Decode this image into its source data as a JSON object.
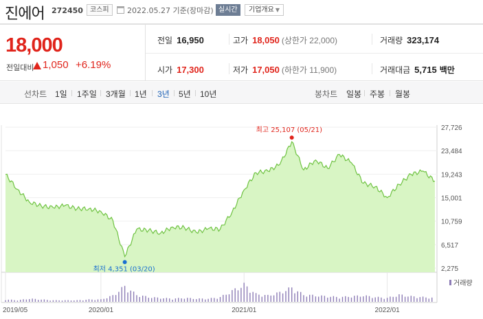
{
  "header": {
    "stock_name": "진에어",
    "stock_code": "272450",
    "market": "코스피",
    "date_text": "2022.05.27 기준(장마감)",
    "realtime_label": "실시간",
    "overview_label": "기업개요",
    "icons": {
      "calendar": "calendar-icon",
      "dropdown": "chevron-down-icon"
    }
  },
  "price": {
    "current": "18,000",
    "change_label": "전일대비",
    "change_value": "1,050",
    "change_pct": "+6.19%",
    "direction": "up",
    "colors": {
      "up": "#e0241b"
    }
  },
  "stats": {
    "prev_close_label": "전일",
    "prev_close": "16,950",
    "high_label": "고가",
    "high": "18,050",
    "upper_limit_text": "(상한가 22,000)",
    "volume_label": "거래량",
    "volume": "323,174",
    "open_label": "시가",
    "open": "17,300",
    "low_label": "저가",
    "low": "17,050",
    "lower_limit_text": "(하한가 11,900)",
    "amount_label": "거래대금",
    "amount": "5,715",
    "amount_unit": "백만"
  },
  "toolbar": {
    "line_chart_label": "선차트",
    "periods": [
      "1일",
      "1주일",
      "3개월",
      "1년",
      "3년",
      "5년",
      "10년"
    ],
    "active_period": "3년",
    "candle_chart_label": "봉차트",
    "candle_periods": [
      "일봉",
      "주봉",
      "월봉"
    ]
  },
  "chart_data": {
    "type": "area",
    "y_ticks": [
      "27,726",
      "23,484",
      "19,243",
      "15,001",
      "10,759",
      "6,517",
      "2,275"
    ],
    "ylim": [
      2275,
      27726
    ],
    "x_ticks": [
      "2019/05",
      "2020/01",
      "2021/01",
      "2022/01"
    ],
    "max_annotation": "최고 25,107 (05/21)",
    "min_annotation": "최저 4,351 (03/20)",
    "volume_label": "거래량",
    "colors": {
      "area_fill": "#d8f5c4",
      "line": "#6ec241",
      "max_marker": "#e0241b",
      "min_marker": "#1a6fd0",
      "volume_bar": "#8c7bb5"
    },
    "x": [
      "2019-05",
      "2019-06",
      "2019-07",
      "2019-08",
      "2019-09",
      "2019-10",
      "2019-11",
      "2019-12",
      "2020-01",
      "2020-02",
      "2020-03",
      "2020-04",
      "2020-05",
      "2020-06",
      "2020-07",
      "2020-08",
      "2020-09",
      "2020-10",
      "2020-11",
      "2020-12",
      "2021-01",
      "2021-02",
      "2021-03",
      "2021-04",
      "2021-05",
      "2021-06",
      "2021-07",
      "2021-08",
      "2021-09",
      "2021-10",
      "2021-11",
      "2021-12",
      "2022-01",
      "2022-02",
      "2022-03",
      "2022-04",
      "2022-05"
    ],
    "series": [
      {
        "values": [
          19200,
          16500,
          14200,
          13500,
          13200,
          13600,
          13000,
          13000,
          12500,
          10900,
          4351,
          9300,
          9100,
          8600,
          9700,
          9600,
          8700,
          9400,
          9300,
          12400,
          16400,
          19500,
          19800,
          21000,
          25107,
          20000,
          21800,
          20300,
          22800,
          21300,
          17600,
          17000,
          15000,
          17400,
          19200,
          19800,
          18000
        ]
      }
    ],
    "volume": [
      3,
      2,
      4,
      3,
      2,
      2,
      2,
      3,
      3,
      8,
      20,
      9,
      6,
      5,
      4,
      5,
      4,
      4,
      6,
      14,
      22,
      10,
      8,
      12,
      18,
      9,
      8,
      7,
      6,
      7,
      8,
      6,
      5,
      9,
      7,
      6,
      5
    ]
  }
}
